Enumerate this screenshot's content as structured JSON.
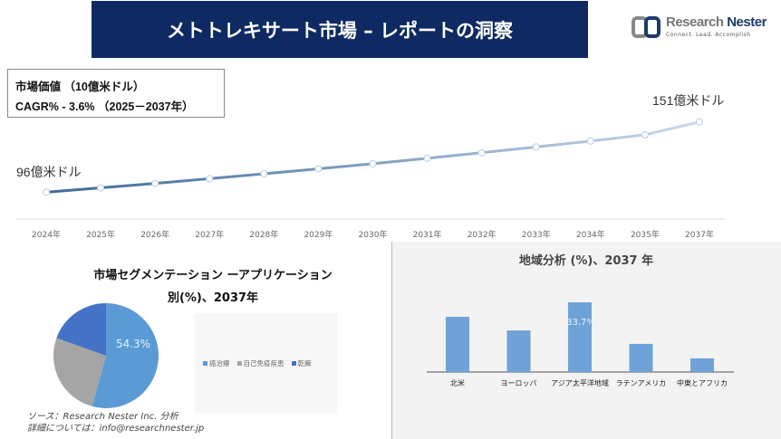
{
  "header": {
    "title": "メトトレキサート市場 – レポートの洞察",
    "logo_name": "Research",
    "logo_name2": "Nester",
    "logo_tagline": "Connect. Lead. Accomplish"
  },
  "info": {
    "market_value": "市場価値 （10億米ドル）",
    "cagr": "CAGR% - 3.6% （2025－2037年）"
  },
  "chart_data": [
    {
      "type": "line",
      "categories": [
        "2024年",
        "2025年",
        "2026年",
        "2027年",
        "2028年",
        "2029年",
        "2030年",
        "2031年",
        "2032年",
        "2033年",
        "2034年",
        "2035年",
        "2037年"
      ],
      "values": [
        96,
        99.4,
        102.9,
        106.6,
        110.4,
        114.3,
        118.3,
        122.5,
        126.9,
        131.4,
        136.0,
        140.9,
        151
      ],
      "start_label": "96億米ドル",
      "end_label": "151億米ドル",
      "ylim": [
        75,
        155
      ],
      "grid": false,
      "colors": [
        "#3e6a99",
        "#c9d9ea"
      ]
    },
    {
      "type": "pie",
      "title": "市場セグメンテーション ーアプリケーション別(%)、2037年",
      "title_line1": "市場セグメンテーション ーアプリケーション",
      "title_line2": "別(%)、2037年",
      "labels": [
        "癌治療",
        "自己免疫疾患",
        "乾癬"
      ],
      "values": [
        54.3,
        26.2,
        19.5
      ],
      "data_label": "54.3%",
      "colors": [
        "#5b9bd5",
        "#a5a5a5",
        "#4472c4"
      ],
      "legend": "right"
    },
    {
      "type": "bar",
      "title": "地域分析 (%)、2037 年",
      "categories": [
        "北米",
        "ヨーロッパ",
        "アジア太平洋地域",
        "ラテンアメリカ",
        "中東とアフリカ"
      ],
      "values": [
        26.7,
        20.1,
        33.7,
        13.6,
        6.6
      ],
      "data_label": "33.7%",
      "color": "#6fa3d8"
    }
  ],
  "footer": {
    "source": "ソース：Research Nester Inc. 分析",
    "contact": "詳細については：info@researchnester.jp"
  }
}
